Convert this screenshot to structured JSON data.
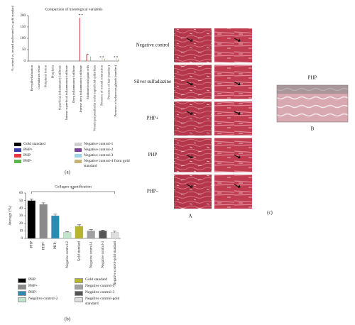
{
  "chart_data": [
    {
      "type": "bar",
      "title": "Comparison of histological variables",
      "y_label": "% control vs. treated and treated vs. gold standard",
      "categories": [
        "Re-epithelialization",
        "Granulation tissue",
        "Peripheral lesion",
        "Dysplasia",
        "Superficial inflammatory infiltrate",
        "Intense superficial inflammatory infiltrate",
        "Deep inflammatory infiltrate",
        "Intense deep inflammatory infiltrate",
        "Multinucleated giant cells",
        "Vessels perpendicular to the superficial epithelium",
        "Presence of wound contraction",
        "Presence of hair (number)",
        "Presence of sebaceous glands (number)"
      ],
      "series": [
        {
          "name": "Gold standard",
          "color": "#000000",
          "values": [
            0,
            0,
            0,
            0,
            0,
            0,
            0,
            0,
            0,
            0,
            0,
            0,
            0
          ]
        },
        {
          "name": "PHP+",
          "color": "#3a3fa8",
          "values": [
            0,
            0,
            0,
            0,
            0,
            0,
            0,
            0,
            0,
            0,
            0,
            0,
            0
          ]
        },
        {
          "name": "PHP",
          "color": "#e8393f",
          "values": [
            0,
            0,
            0,
            0,
            0,
            0,
            0,
            190,
            30,
            0,
            0,
            0,
            0
          ]
        },
        {
          "name": "PHP-",
          "color": "#5ab848",
          "values": [
            0,
            0,
            0,
            0,
            0,
            0,
            0,
            0,
            0,
            0,
            0,
            0,
            0
          ]
        },
        {
          "name": "Negative control-1",
          "color": "#cfcfcf",
          "values": [
            0,
            0,
            0,
            0,
            0,
            0,
            0,
            0,
            0,
            0,
            15,
            0,
            12
          ]
        },
        {
          "name": "Negative control-2",
          "color": "#7b3f98",
          "values": [
            0,
            0,
            0,
            0,
            0,
            0,
            0,
            0,
            0,
            0,
            0,
            0,
            0
          ]
        },
        {
          "name": "Negative control-3",
          "color": "#9fd3ea",
          "values": [
            0,
            0,
            0,
            0,
            0,
            0,
            0,
            0,
            0,
            0,
            0,
            0,
            0
          ]
        },
        {
          "name": "Negative control-4 from gold standard",
          "color": "#c8b27a",
          "values": [
            0,
            0,
            0,
            0,
            0,
            0,
            0,
            0,
            20,
            0,
            10,
            0,
            8
          ]
        }
      ],
      "annotations": [
        "* *",
        "*",
        "* *",
        "* *"
      ],
      "ylim": [
        0,
        200
      ],
      "yticks": [
        0,
        50,
        100,
        150,
        200
      ]
    },
    {
      "type": "bar",
      "title": "Collagen quantification",
      "y_label": "Average (%)",
      "categories": [
        "PHP",
        "PHP+",
        "PHP-",
        "Negative control-2",
        "Gold standard",
        "Negative control-1",
        "Negative control-3",
        "Negative control-gold standard"
      ],
      "values": [
        50,
        45,
        30,
        8,
        16,
        10,
        10,
        8
      ],
      "errors": [
        2,
        2,
        2,
        1,
        2,
        1.5,
        1,
        1.5
      ],
      "colors": [
        "#000000",
        "#8a8a8a",
        "#2b8cb3",
        "#bfe6cc",
        "#b6b52c",
        "#a0a0a0",
        "#555555",
        "#dedede"
      ],
      "annotation": "*",
      "ylim": [
        0,
        60
      ],
      "yticks": [
        0,
        10,
        20,
        30,
        40,
        50,
        60
      ]
    }
  ],
  "panels": {
    "a_label": "(a)",
    "b_label": "(b)",
    "c_label": "(c)",
    "row_labels": [
      "Negative control",
      "Silver sulfadiazine",
      "PHP+",
      "PHP",
      "PHP–"
    ],
    "column_label": "A",
    "inset_title": "PHP",
    "inset_label": "B"
  }
}
